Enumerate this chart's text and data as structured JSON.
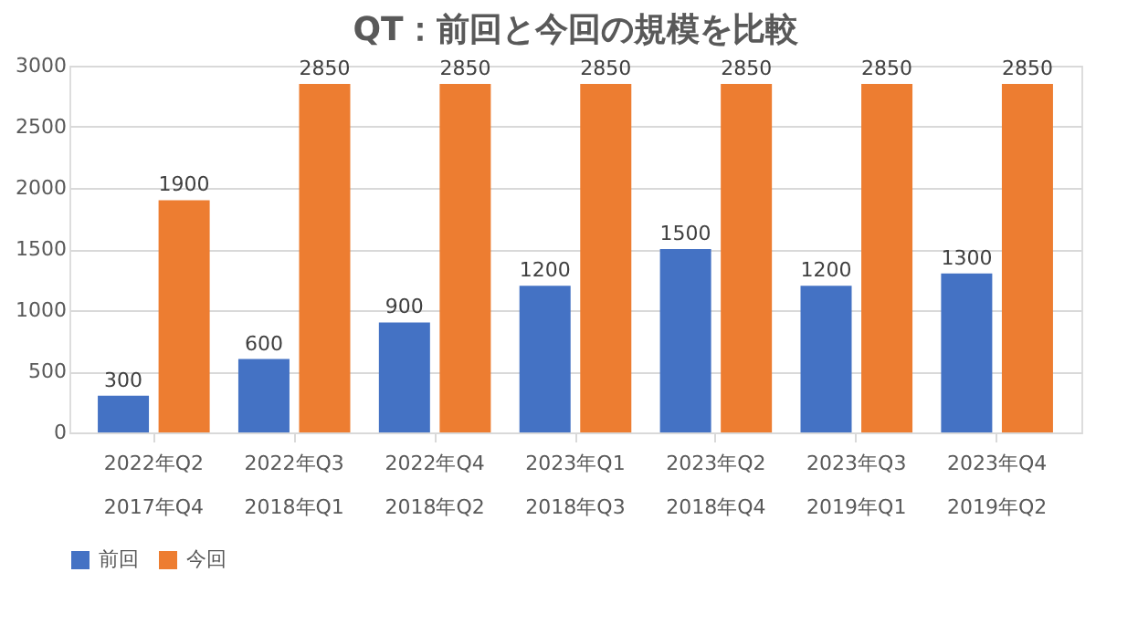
{
  "chart_data": {
    "type": "bar",
    "title": "QT：前回と今回の規模を比較",
    "categories": [
      "2022年Q2\n2017年Q4",
      "2022年Q3\n2018年Q1",
      "2022年Q4\n2018年Q2",
      "2023年Q1\n2018年Q3",
      "2023年Q2\n2018年Q4",
      "2023年Q3\n2019年Q1",
      "2023年Q4\n2019年Q2"
    ],
    "series": [
      {
        "name": "前回",
        "color": "#4472c4",
        "values": [
          300,
          600,
          900,
          1200,
          1500,
          1200,
          1300
        ]
      },
      {
        "name": "今回",
        "color": "#ed7d31",
        "values": [
          1900,
          2850,
          2850,
          2850,
          2850,
          2850,
          2850
        ]
      }
    ],
    "ylim": [
      0,
      3000
    ],
    "yticks": [
      0,
      500,
      1000,
      1500,
      2000,
      2500,
      3000
    ],
    "grid": "y",
    "legend": "bottom",
    "data_labels": true
  }
}
